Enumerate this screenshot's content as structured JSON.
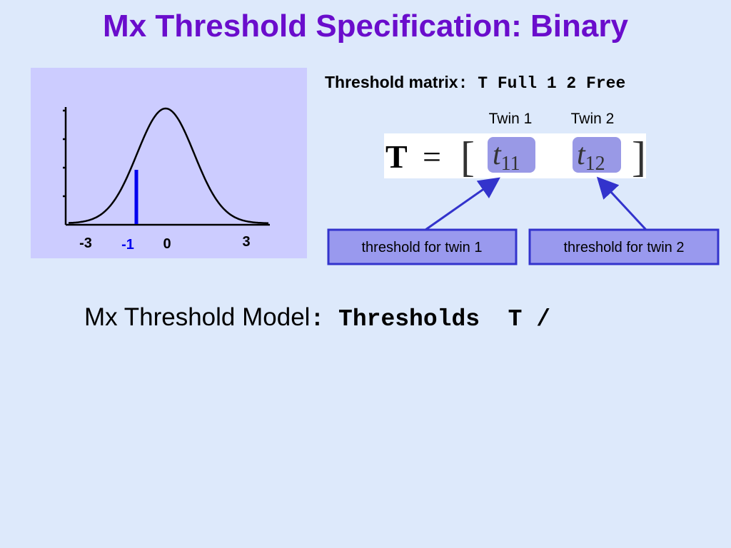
{
  "title": "Mx Threshold Specification: Binary",
  "figure": {
    "x_labels": [
      -3,
      -1,
      0,
      3
    ]
  },
  "threshold_matrix": {
    "label": "Threshold matrix",
    "command": ": T Full 1 2 Free"
  },
  "columns": [
    "Twin 1",
    "Twin 2"
  ],
  "matrix": {
    "name": "T",
    "equals": "=",
    "entries": [
      {
        "symbol": "t",
        "subscript": "11"
      },
      {
        "symbol": "t",
        "subscript": "12"
      }
    ]
  },
  "callouts": [
    "threshold for twin 1",
    "threshold for twin 2"
  ],
  "model": {
    "label": "Mx Threshold Model",
    "command": ": Thresholds  T /"
  }
}
